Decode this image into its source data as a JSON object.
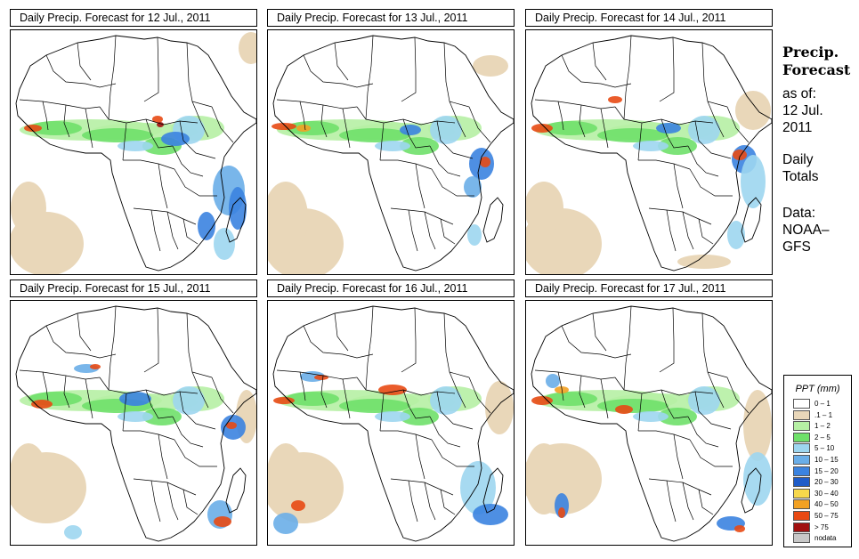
{
  "panels": [
    {
      "title": "Daily Precip. Forecast for  12 Jul., 2011"
    },
    {
      "title": "Daily Precip. Forecast for  13 Jul., 2011"
    },
    {
      "title": "Daily Precip. Forecast for  14 Jul., 2011"
    },
    {
      "title": "Daily Precip. Forecast for  15 Jul., 2011"
    },
    {
      "title": "Daily Precip. Forecast for  16 Jul., 2011"
    },
    {
      "title": "Daily Precip. Forecast for  17 Jul., 2011"
    }
  ],
  "side": {
    "heading_line1": "Precip.",
    "heading_line2": "Forecast",
    "asof_line1": "as of:",
    "asof_line2": "12 Jul.",
    "asof_line3": "2011",
    "totals_line1": "Daily",
    "totals_line2": "Totals",
    "data_line1": "Data:",
    "data_line2": "NOAA–",
    "data_line3": "GFS"
  },
  "legend": {
    "title": "PPT (mm)",
    "items": [
      {
        "label": "0 – 1",
        "color": "#ffffff"
      },
      {
        "label": ".1 – 1",
        "color": "#e9d7b9"
      },
      {
        "label": "1 – 2",
        "color": "#b6f0a4"
      },
      {
        "label": "2 – 5",
        "color": "#6fe06a"
      },
      {
        "label": "5 – 10",
        "color": "#9dd6f0"
      },
      {
        "label": "10 – 15",
        "color": "#6aaee8"
      },
      {
        "label": "15 – 20",
        "color": "#3b83e0"
      },
      {
        "label": "20 – 30",
        "color": "#1f5cc8"
      },
      {
        "label": "30 – 40",
        "color": "#f7d84c"
      },
      {
        "label": "40 – 50",
        "color": "#f2a123"
      },
      {
        "label": "50 – 75",
        "color": "#e84a14"
      },
      {
        "label": "> 75",
        "color": "#a11010"
      },
      {
        "label": "nodata",
        "color": "#c8c8c8"
      }
    ]
  }
}
